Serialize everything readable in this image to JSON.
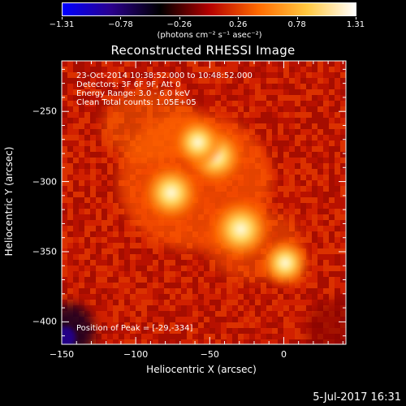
{
  "chart_data": {
    "type": "heatmap",
    "title": "Reconstructed RHESSI Image",
    "xlabel": "Heliocentric X (arcsec)",
    "ylabel": "Heliocentric Y (arcsec)",
    "xlim": [
      -150,
      42
    ],
    "ylim": [
      -416,
      -214
    ],
    "x_ticks": [
      "−150",
      "−100",
      "−50",
      "0"
    ],
    "x_tick_values": [
      -150,
      -100,
      -50,
      0
    ],
    "y_ticks": [
      "−250",
      "−300",
      "−350",
      "−400"
    ],
    "y_tick_values": [
      -250,
      -300,
      -350,
      -400
    ],
    "colorbar": {
      "ticks": [
        "−1.31",
        "−0.78",
        "−0.26",
        "0.26",
        "0.78",
        "1.31"
      ],
      "range": [
        -1.31,
        1.31
      ],
      "label": "(photons cm⁻² s⁻¹ asec⁻²)",
      "colors": [
        "#0000ff",
        "#2a008c",
        "#000000",
        "#b40000",
        "#ff6a00",
        "#ffc840",
        "#ffffff"
      ]
    },
    "sources": [
      {
        "x": -29,
        "y": -334,
        "intensity": 1.31
      },
      {
        "x": -46,
        "y": -282,
        "intensity": 1.1
      },
      {
        "x": -76,
        "y": -308,
        "intensity": 1.15
      },
      {
        "x": -58,
        "y": -272,
        "intensity": 0.8
      },
      {
        "x": 1,
        "y": -358,
        "intensity": 0.75
      }
    ],
    "annotations": [
      "23-Oct-2014 10:38:52.000 to 10:48:52.000",
      "Detectors: 3F 6F 9F, Att 0",
      "Energy Range: 3.0 - 6.0 keV",
      "Clean     Total counts: 1.05E+05"
    ],
    "peak_label": "Position of Peak = [-29,-334]"
  },
  "footer": {
    "date": "5-Jul-2017 16:31"
  }
}
